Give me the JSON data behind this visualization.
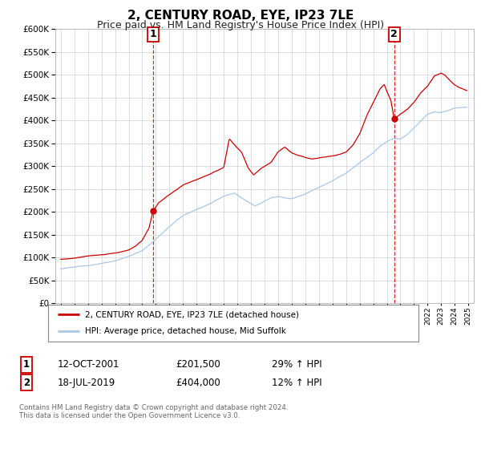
{
  "title": "2, CENTURY ROAD, EYE, IP23 7LE",
  "subtitle": "Price paid vs. HM Land Registry's House Price Index (HPI)",
  "title_fontsize": 11,
  "subtitle_fontsize": 9,
  "hpi_color": "#a8c8e8",
  "price_color": "#cc0000",
  "marker_color": "#cc0000",
  "dashed_color": "#cc0000",
  "ylim": [
    0,
    600000
  ],
  "yticks": [
    0,
    50000,
    100000,
    150000,
    200000,
    250000,
    300000,
    350000,
    400000,
    450000,
    500000,
    550000,
    600000
  ],
  "xlim_start": 1994.6,
  "xlim_end": 2025.4,
  "sale1_x": 2001.79,
  "sale1_y": 201500,
  "sale1_label": "1",
  "sale1_date": "12-OCT-2001",
  "sale1_price": "£201,500",
  "sale1_hpi": "29% ↑ HPI",
  "sale2_x": 2019.54,
  "sale2_y": 404000,
  "sale2_label": "2",
  "sale2_date": "18-JUL-2019",
  "sale2_price": "£404,000",
  "sale2_hpi": "12% ↑ HPI",
  "legend_label1": "2, CENTURY ROAD, EYE, IP23 7LE (detached house)",
  "legend_label2": "HPI: Average price, detached house, Mid Suffolk",
  "footer": "Contains HM Land Registry data © Crown copyright and database right 2024.\nThis data is licensed under the Open Government Licence v3.0.",
  "background_color": "#ffffff",
  "grid_color": "#d0d0d0"
}
